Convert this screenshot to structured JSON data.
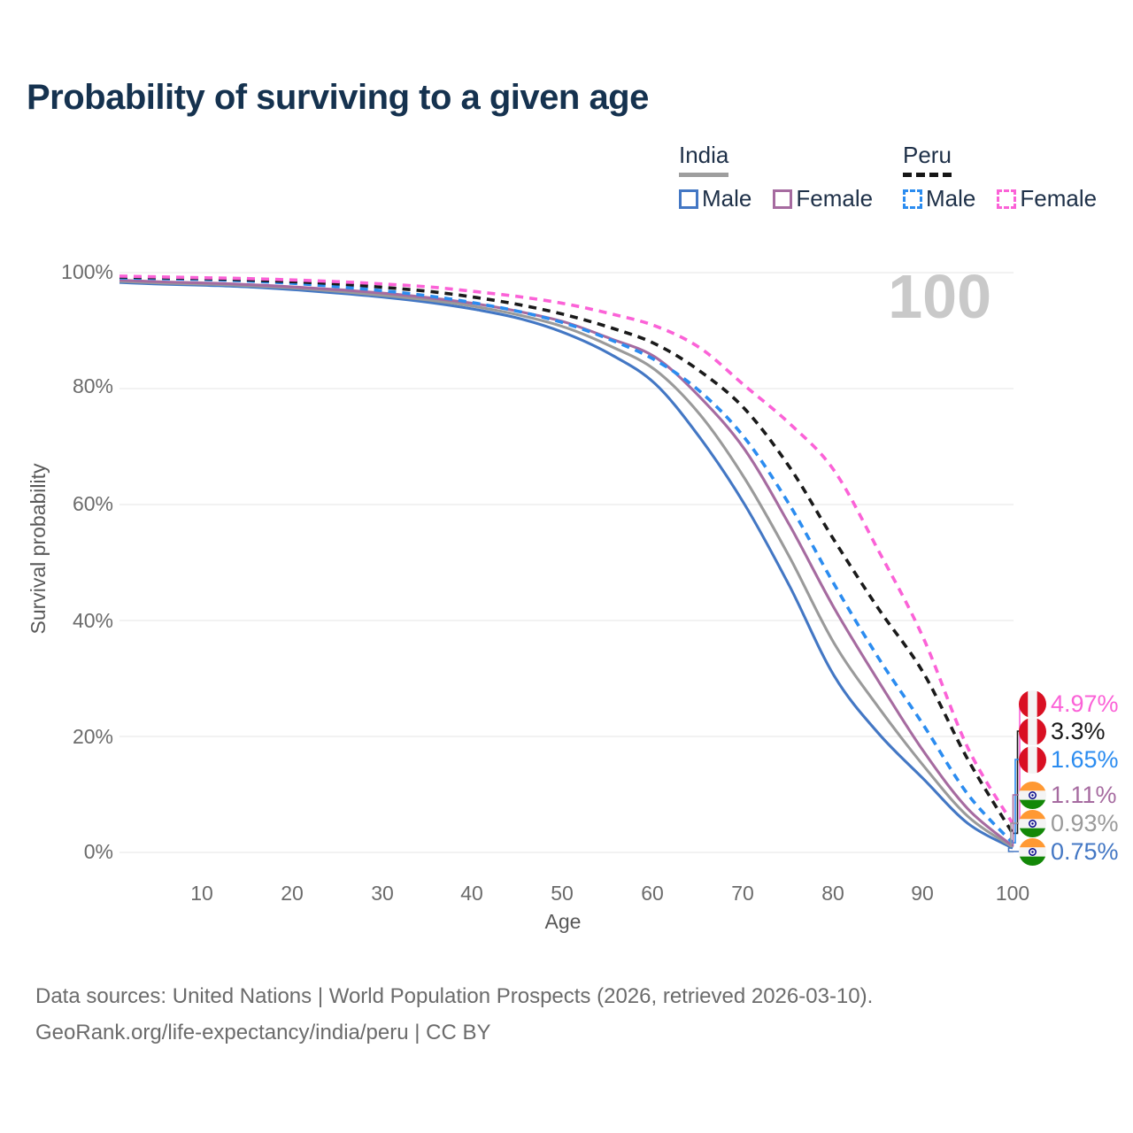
{
  "header": {
    "title": "Probability of surviving to a given age"
  },
  "legend": {
    "groups": [
      {
        "label": "India",
        "line_style": "solid",
        "underline_color": "#9e9e9e",
        "items": [
          {
            "label": "Male",
            "color": "#4377c4",
            "dash": false
          },
          {
            "label": "Female",
            "color": "#a66ba0",
            "dash": false
          }
        ]
      },
      {
        "label": "Peru",
        "line_style": "dashed",
        "underline_color": "#161616",
        "items": [
          {
            "label": "Male",
            "color": "#2b8cf0",
            "dash": true
          },
          {
            "label": "Female",
            "color": "#fb62d7",
            "dash": true
          }
        ]
      }
    ]
  },
  "chart_data": {
    "type": "line",
    "title": "Probability of surviving to a given age",
    "xlabel": "Age",
    "ylabel": "Survival probability",
    "xlim": [
      0,
      100
    ],
    "ylim": [
      0,
      100
    ],
    "grid": "horizontal",
    "watermark": "100",
    "x": [
      0,
      5,
      10,
      15,
      20,
      25,
      30,
      35,
      40,
      45,
      50,
      55,
      60,
      65,
      70,
      75,
      80,
      85,
      90,
      95,
      100
    ],
    "xticks": [
      10,
      20,
      30,
      40,
      50,
      60,
      70,
      80,
      90,
      100
    ],
    "yticks": [
      100,
      80,
      60,
      40,
      20,
      0
    ],
    "ytick_labels": [
      "100%",
      "80%",
      "60%",
      "40%",
      "20%",
      "0%"
    ],
    "series": [
      {
        "name": "India Male",
        "key": "india-male",
        "color": "#4377c4",
        "dash": false,
        "values": [
          98.3,
          98.0,
          97.8,
          97.5,
          97.0,
          96.4,
          95.7,
          94.8,
          93.6,
          92.0,
          89.5,
          85.9,
          80.8,
          71.5,
          60.0,
          46.0,
          30.5,
          20.5,
          12.7,
          5.0,
          0.75
        ]
      },
      {
        "name": "India Both sexes",
        "key": "india-all",
        "color": "#9a9a9a",
        "dash": false,
        "values": [
          98.5,
          98.2,
          98.0,
          97.7,
          97.3,
          96.7,
          96.0,
          95.2,
          94.1,
          92.6,
          90.5,
          87.3,
          83.2,
          75.5,
          64.5,
          51.0,
          36.1,
          25.0,
          15.0,
          6.2,
          0.93
        ]
      },
      {
        "name": "India Female",
        "key": "india-female",
        "color": "#a66ba0",
        "dash": false,
        "values": [
          98.7,
          98.4,
          98.2,
          97.9,
          97.5,
          97.0,
          96.4,
          95.6,
          94.6,
          93.2,
          91.4,
          88.6,
          85.4,
          78.5,
          69.5,
          56.5,
          42.2,
          29.5,
          17.5,
          7.5,
          1.11
        ]
      },
      {
        "name": "Peru Male",
        "key": "peru-male",
        "color": "#2b8cf0",
        "dash": true,
        "values": [
          99.1,
          98.95,
          98.8,
          98.5,
          98.1,
          97.5,
          96.8,
          95.9,
          94.7,
          93.2,
          91.2,
          88.4,
          84.9,
          79.5,
          71.5,
          60.0,
          46.3,
          33.5,
          22.0,
          10.0,
          1.65
        ]
      },
      {
        "name": "Peru Both sexes",
        "key": "peru-all",
        "color": "#1a1a1a",
        "dash": true,
        "values": [
          99.25,
          99.1,
          98.95,
          98.7,
          98.4,
          98.0,
          97.4,
          96.7,
          95.7,
          94.4,
          92.7,
          90.5,
          87.7,
          83.0,
          76.5,
          66.5,
          53.9,
          42.0,
          31.0,
          16.0,
          3.3
        ]
      },
      {
        "name": "Peru Female",
        "key": "peru-female",
        "color": "#fb62d7",
        "dash": true,
        "values": [
          99.4,
          99.25,
          99.1,
          98.95,
          98.7,
          98.4,
          98.0,
          97.5,
          96.7,
          95.8,
          94.6,
          92.9,
          90.8,
          87.0,
          80.5,
          74.0,
          65.9,
          52.0,
          37.0,
          18.0,
          4.97
        ]
      }
    ]
  },
  "end_labels": [
    {
      "series": "peru-female",
      "flag": "peru",
      "value": "4.97%",
      "color": "#fb62d7"
    },
    {
      "series": "peru-all",
      "flag": "peru",
      "value": "3.3%",
      "color": "#1a1a1a"
    },
    {
      "series": "peru-male",
      "flag": "peru",
      "value": "1.65%",
      "color": "#2b8cf0"
    },
    {
      "series": "india-female",
      "flag": "india",
      "value": "1.11%",
      "color": "#a66ba0"
    },
    {
      "series": "india-all",
      "flag": "india",
      "value": "0.93%",
      "color": "#9a9a9a"
    },
    {
      "series": "india-male",
      "flag": "india",
      "value": "0.75%",
      "color": "#4377c4"
    }
  ],
  "footer": {
    "line1": "Data sources: United Nations | World Population Prospects (2026, retrieved 2026-03-10).",
    "line2": "GeoRank.org/life-expectancy/india/peru | CC BY"
  }
}
